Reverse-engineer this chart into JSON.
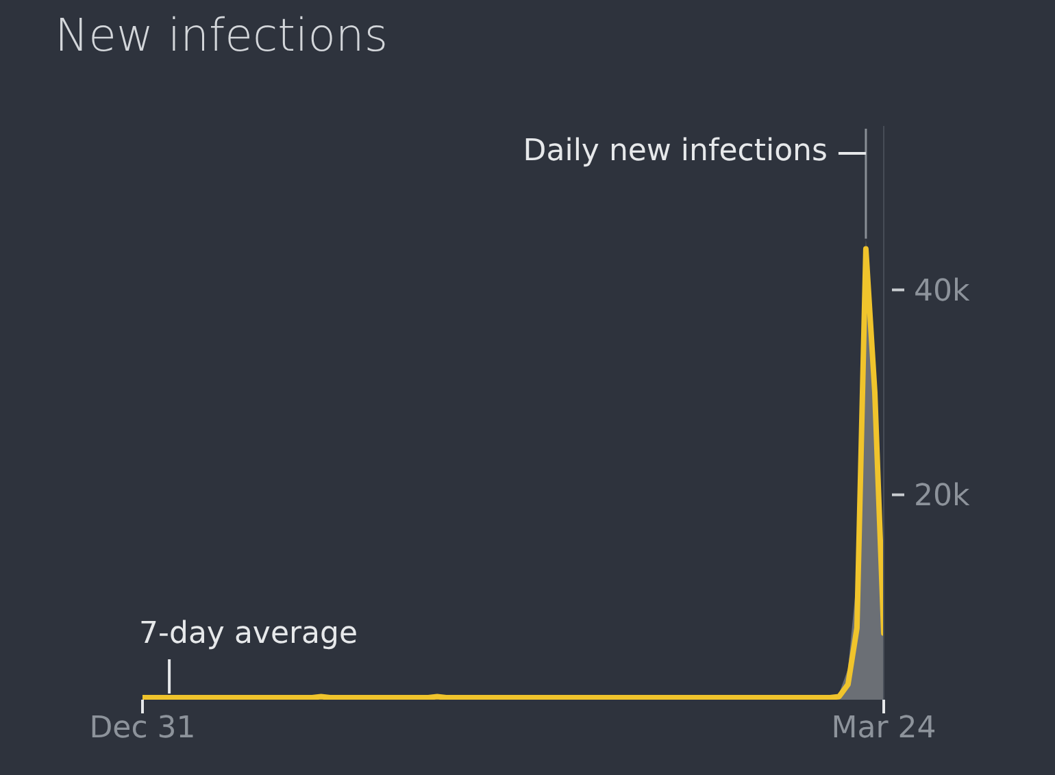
{
  "chart_data": {
    "type": "line",
    "title": "New infections",
    "categories": [
      "Dec 31",
      null,
      null,
      null,
      null,
      null,
      null,
      null,
      null,
      null,
      null,
      null,
      null,
      null,
      null,
      null,
      null,
      null,
      null,
      null,
      null,
      null,
      null,
      null,
      null,
      null,
      null,
      null,
      null,
      null,
      null,
      null,
      null,
      null,
      null,
      null,
      null,
      null,
      null,
      null,
      null,
      null,
      null,
      null,
      null,
      null,
      null,
      null,
      null,
      null,
      null,
      null,
      null,
      null,
      null,
      null,
      null,
      null,
      null,
      null,
      null,
      null,
      null,
      null,
      null,
      null,
      null,
      null,
      null,
      null,
      null,
      null,
      null,
      null,
      null,
      null,
      null,
      null,
      null,
      null,
      null,
      null,
      null,
      "Mar 24"
    ],
    "ylim": [
      0,
      56000
    ],
    "yticks": [
      {
        "value": 20000,
        "label": "20k"
      },
      {
        "value": 40000,
        "label": "40k"
      }
    ],
    "series": [
      {
        "name": "Daily new infections",
        "type": "area",
        "color": "#6b6f75",
        "values": [
          null,
          null,
          null,
          null,
          null,
          null,
          null,
          null,
          null,
          null,
          null,
          null,
          null,
          null,
          null,
          null,
          null,
          null,
          null,
          null,
          null,
          null,
          null,
          null,
          null,
          null,
          null,
          null,
          null,
          null,
          null,
          null,
          null,
          null,
          null,
          null,
          null,
          null,
          null,
          null,
          null,
          null,
          null,
          null,
          null,
          null,
          null,
          null,
          null,
          null,
          null,
          null,
          null,
          null,
          null,
          null,
          null,
          null,
          null,
          null,
          null,
          null,
          null,
          null,
          null,
          null,
          null,
          null,
          null,
          null,
          null,
          null,
          null,
          null,
          null,
          null,
          null,
          200,
          600,
          3000,
          12000,
          45000,
          26000,
          7600
        ]
      },
      {
        "name": "7-day average",
        "color": "#f0c42c",
        "values": [
          200,
          200,
          200,
          200,
          200,
          200,
          200,
          200,
          200,
          200,
          200,
          200,
          200,
          200,
          200,
          200,
          200,
          200,
          200,
          200,
          300,
          200,
          200,
          200,
          200,
          200,
          200,
          200,
          200,
          200,
          200,
          200,
          200,
          300,
          200,
          200,
          200,
          200,
          200,
          200,
          200,
          200,
          200,
          200,
          200,
          200,
          200,
          200,
          200,
          200,
          200,
          200,
          200,
          200,
          200,
          200,
          200,
          200,
          200,
          200,
          200,
          200,
          200,
          200,
          200,
          200,
          200,
          200,
          200,
          200,
          200,
          200,
          200,
          200,
          200,
          200,
          200,
          200,
          300,
          1500,
          7000,
          44000,
          30000,
          6500
        ]
      }
    ]
  }
}
